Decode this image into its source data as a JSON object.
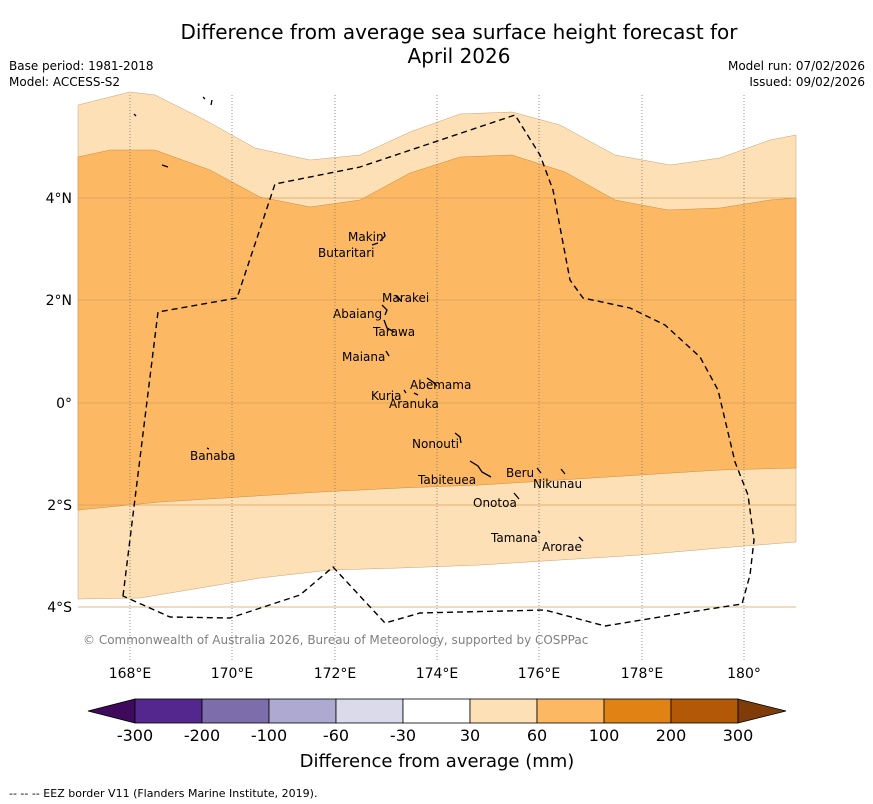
{
  "title": {
    "line1": "Difference from average sea surface height forecast for",
    "line2": "April 2026"
  },
  "meta": {
    "base_period": "Base period: 1981-2018",
    "model": "Model: ACCESS-S2",
    "model_run": "Model run: 07/02/2026",
    "issued": "Issued: 09/02/2026"
  },
  "map": {
    "lon_range": [
      167,
      181
    ],
    "lat_range": [
      -5,
      6
    ],
    "x_ticks": [
      "168°E",
      "170°E",
      "172°E",
      "174°E",
      "176°E",
      "178°E",
      "180°"
    ],
    "y_ticks": [
      "4°N",
      "2°N",
      "0°",
      "2°S",
      "4°S"
    ],
    "islands": [
      {
        "name": "Makin",
        "lon": 172.95,
        "lat": 3.2
      },
      {
        "name": "Butaritari",
        "lon": 172.8,
        "lat": 3.05
      },
      {
        "name": "Marakei",
        "lon": 173.35,
        "lat": 2.0
      },
      {
        "name": "Abaiang",
        "lon": 172.95,
        "lat": 1.82
      },
      {
        "name": "Tarawa",
        "lon": 173.05,
        "lat": 1.38
      },
      {
        "name": "Maiana",
        "lon": 173.0,
        "lat": 0.9
      },
      {
        "name": "Abemama",
        "lon": 173.85,
        "lat": 0.4
      },
      {
        "name": "Kuria",
        "lon": 173.4,
        "lat": 0.22
      },
      {
        "name": "Aranuka",
        "lon": 173.6,
        "lat": 0.17
      },
      {
        "name": "Nonouti",
        "lon": 174.4,
        "lat": -0.65
      },
      {
        "name": "Banaba",
        "lon": 169.53,
        "lat": -0.87
      },
      {
        "name": "Tabiteuea",
        "lon": 174.85,
        "lat": -1.3
      },
      {
        "name": "Beru",
        "lon": 175.98,
        "lat": -1.33
      },
      {
        "name": "Nikunau",
        "lon": 176.45,
        "lat": -1.35
      },
      {
        "name": "Onotoa",
        "lon": 175.55,
        "lat": -1.8
      },
      {
        "name": "Tamana",
        "lon": 175.98,
        "lat": -2.5
      },
      {
        "name": "Arorae",
        "lon": 176.82,
        "lat": -2.65
      }
    ]
  },
  "copyright": "© Commonwealth of Australia 2026, Bureau of Meteorology, supported by COSPPac",
  "colorbar": {
    "colors": [
      "#3f0a5c",
      "#54278f",
      "#7d6eab",
      "#aea9d1",
      "#dadaeb",
      "#ffffff",
      "#fee0b6",
      "#fdb863",
      "#e08214",
      "#b35806",
      "#7f3b08"
    ],
    "labels": [
      "-300",
      "-200",
      "-100",
      "-60",
      "-30",
      "30",
      "60",
      "100",
      "200",
      "300"
    ],
    "title": "Difference from average (mm)"
  },
  "footnote": "--  --  -- EEZ border V11 (Flanders Marine Institute, 2019)."
}
